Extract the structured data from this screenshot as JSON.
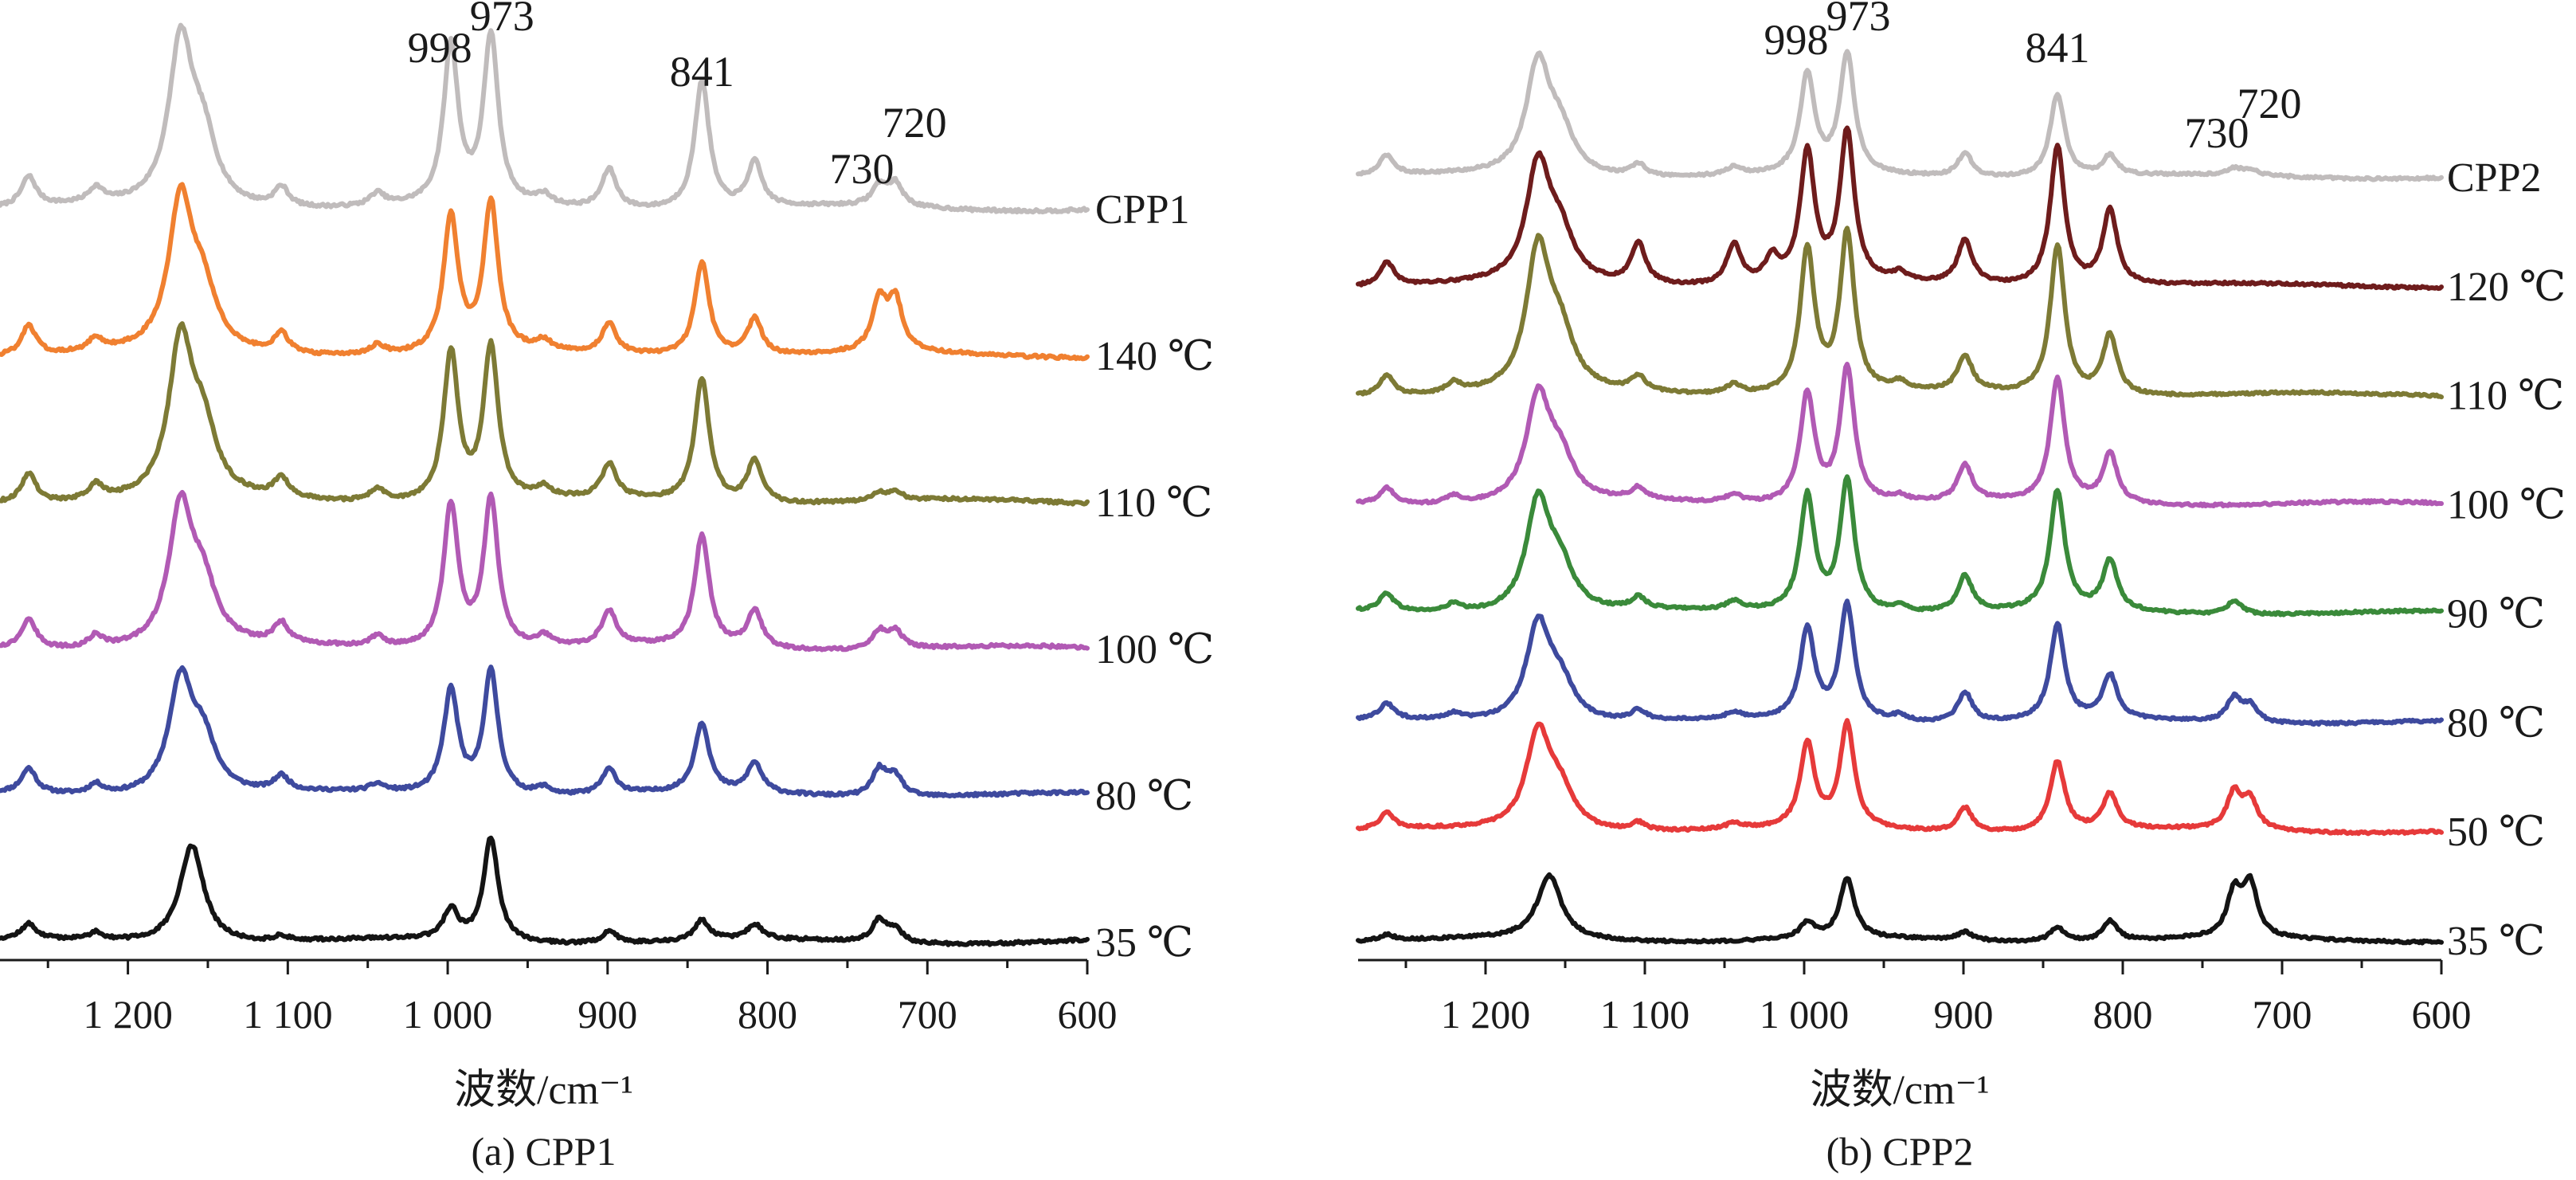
{
  "chart_data": [
    {
      "type": "line",
      "caption": "(a) CPP1",
      "xlabel": "波数/cm⁻¹",
      "ylabel": "",
      "xlim": [
        1280,
        600
      ],
      "x_reversed": true,
      "x_ticks": [
        1200,
        1100,
        1000,
        900,
        800,
        700,
        600
      ],
      "x_tick_labels": [
        "1 200",
        "1 100",
        "1 000",
        "900",
        "800",
        "700",
        "600"
      ],
      "peak_annotations": [
        {
          "text": "998",
          "x": 998
        },
        {
          "text": "973",
          "x": 973
        },
        {
          "text": "841",
          "x": 841
        },
        {
          "text": "730",
          "x": 730
        },
        {
          "text": "720",
          "x": 720
        }
      ],
      "series": [
        {
          "name": "CPP1",
          "color": "#c0bcbc",
          "baseline": 0.0,
          "peaks": {
            "1262": 0.12,
            "1220": 0.06,
            "1167": 0.65,
            "1153": 0.25,
            "1104": 0.08,
            "1044": 0.05,
            "998": 0.64,
            "973": 0.68,
            "940": 0.04,
            "899": 0.16,
            "841": 0.52,
            "808": 0.18,
            "730": 0.08,
            "720": 0.09
          }
        },
        {
          "name": "140 ℃",
          "color": "#f08030",
          "baseline": 0.0,
          "peaks": {
            "1262": 0.12,
            "1220": 0.05,
            "1167": 0.6,
            "1153": 0.22,
            "1104": 0.08,
            "1044": 0.04,
            "998": 0.55,
            "973": 0.6,
            "940": 0.04,
            "899": 0.12,
            "841": 0.38,
            "808": 0.15,
            "730": 0.2,
            "720": 0.2
          }
        },
        {
          "name": "110 ℃",
          "color": "#7d7a35",
          "baseline": 0.0,
          "peaks": {
            "1262": 0.12,
            "1220": 0.06,
            "1167": 0.62,
            "1153": 0.25,
            "1104": 0.08,
            "1044": 0.05,
            "998": 0.6,
            "973": 0.62,
            "940": 0.04,
            "899": 0.14,
            "841": 0.5,
            "808": 0.17,
            "730": 0.03,
            "720": 0.03
          }
        },
        {
          "name": "100 ℃",
          "color": "#b15ab4",
          "baseline": 0.0,
          "peaks": {
            "1262": 0.12,
            "1220": 0.05,
            "1167": 0.55,
            "1153": 0.22,
            "1104": 0.08,
            "1044": 0.04,
            "998": 0.58,
            "973": 0.6,
            "940": 0.04,
            "899": 0.14,
            "841": 0.45,
            "808": 0.15,
            "730": 0.07,
            "720": 0.07
          }
        },
        {
          "name": "80 ℃",
          "color": "#3e4a9e",
          "baseline": 0.0,
          "peaks": {
            "1262": 0.1,
            "1220": 0.04,
            "1167": 0.45,
            "1153": 0.2,
            "1104": 0.06,
            "1044": 0.03,
            "998": 0.42,
            "973": 0.5,
            "940": 0.03,
            "899": 0.1,
            "841": 0.28,
            "808": 0.12,
            "730": 0.11,
            "720": 0.08
          }
        },
        {
          "name": "35 ℃",
          "color": "#141414",
          "baseline": 0.0,
          "peaks": {
            "1262": 0.06,
            "1220": 0.03,
            "1160": 0.4,
            "1104": 0.02,
            "998": 0.12,
            "973": 0.42,
            "899": 0.05,
            "841": 0.08,
            "808": 0.06,
            "730": 0.09,
            "720": 0.05
          }
        }
      ]
    },
    {
      "type": "line",
      "caption": "(b) CPP2",
      "xlabel": "波数/cm⁻¹",
      "ylabel": "",
      "xlim": [
        1280,
        600
      ],
      "x_reversed": true,
      "x_ticks": [
        1200,
        1100,
        1000,
        900,
        800,
        700,
        600
      ],
      "x_tick_labels": [
        "1 200",
        "1 100",
        "1 000",
        "900",
        "800",
        "700",
        "600"
      ],
      "peak_annotations": [
        {
          "text": "998",
          "x": 998
        },
        {
          "text": "973",
          "x": 973
        },
        {
          "text": "841",
          "x": 841
        },
        {
          "text": "730",
          "x": 730
        },
        {
          "text": "720",
          "x": 720
        }
      ],
      "series": [
        {
          "name": "CPP2",
          "color": "#c0bcbc",
          "baseline": 0.0,
          "peaks": {
            "1262": 0.1,
            "1167": 0.55,
            "1153": 0.2,
            "1104": 0.06,
            "1044": 0.04,
            "998": 0.5,
            "973": 0.6,
            "899": 0.12,
            "841": 0.42,
            "808": 0.1,
            "730": 0.03,
            "720": 0.03
          }
        },
        {
          "name": "120 ℃",
          "color": "#6e1c1c",
          "baseline": 0.0,
          "peaks": {
            "1262": 0.12,
            "1167": 0.58,
            "1153": 0.22,
            "1104": 0.2,
            "1044": 0.2,
            "1020": 0.12,
            "998": 0.65,
            "973": 0.75,
            "940": 0.04,
            "899": 0.22,
            "841": 0.7,
            "808": 0.38
          }
        },
        {
          "name": "110 ℃",
          "color": "#7d7a35",
          "baseline": 0.0,
          "peaks": {
            "1262": 0.1,
            "1220": 0.05,
            "1167": 0.7,
            "1153": 0.25,
            "1104": 0.07,
            "1044": 0.05,
            "998": 0.72,
            "973": 0.8,
            "940": 0.04,
            "899": 0.18,
            "841": 0.75,
            "808": 0.3
          }
        },
        {
          "name": "100 ℃",
          "color": "#b15ab4",
          "baseline": 0.0,
          "peaks": {
            "1262": 0.08,
            "1220": 0.04,
            "1167": 0.52,
            "1153": 0.2,
            "1104": 0.06,
            "1044": 0.04,
            "998": 0.55,
            "973": 0.68,
            "940": 0.03,
            "899": 0.18,
            "841": 0.62,
            "808": 0.25
          }
        },
        {
          "name": "90 ℃",
          "color": "#3a8a3a",
          "baseline": 0.0,
          "peaks": {
            "1262": 0.09,
            "1220": 0.04,
            "1167": 0.55,
            "1153": 0.2,
            "1104": 0.06,
            "1044": 0.04,
            "998": 0.58,
            "973": 0.66,
            "940": 0.03,
            "899": 0.18,
            "841": 0.6,
            "808": 0.25,
            "730": 0.07
          }
        },
        {
          "name": "80 ℃",
          "color": "#3e4a9e",
          "baseline": 0.0,
          "peaks": {
            "1262": 0.08,
            "1220": 0.03,
            "1167": 0.48,
            "1153": 0.18,
            "1104": 0.05,
            "1044": 0.03,
            "998": 0.45,
            "973": 0.58,
            "940": 0.03,
            "899": 0.15,
            "841": 0.48,
            "808": 0.22,
            "730": 0.12,
            "720": 0.08
          }
        },
        {
          "name": "50 ℃",
          "color": "#e63a3a",
          "baseline": 0.0,
          "peaks": {
            "1262": 0.08,
            "1167": 0.48,
            "1153": 0.18,
            "1104": 0.04,
            "1044": 0.03,
            "998": 0.42,
            "973": 0.52,
            "899": 0.12,
            "841": 0.35,
            "808": 0.18,
            "730": 0.18,
            "720": 0.14
          }
        },
        {
          "name": "35 ℃",
          "color": "#141414",
          "baseline": 0.0,
          "peaks": {
            "1262": 0.03,
            "1160": 0.32,
            "998": 0.08,
            "973": 0.3,
            "899": 0.04,
            "841": 0.07,
            "808": 0.1,
            "730": 0.22,
            "720": 0.26
          }
        }
      ]
    }
  ]
}
